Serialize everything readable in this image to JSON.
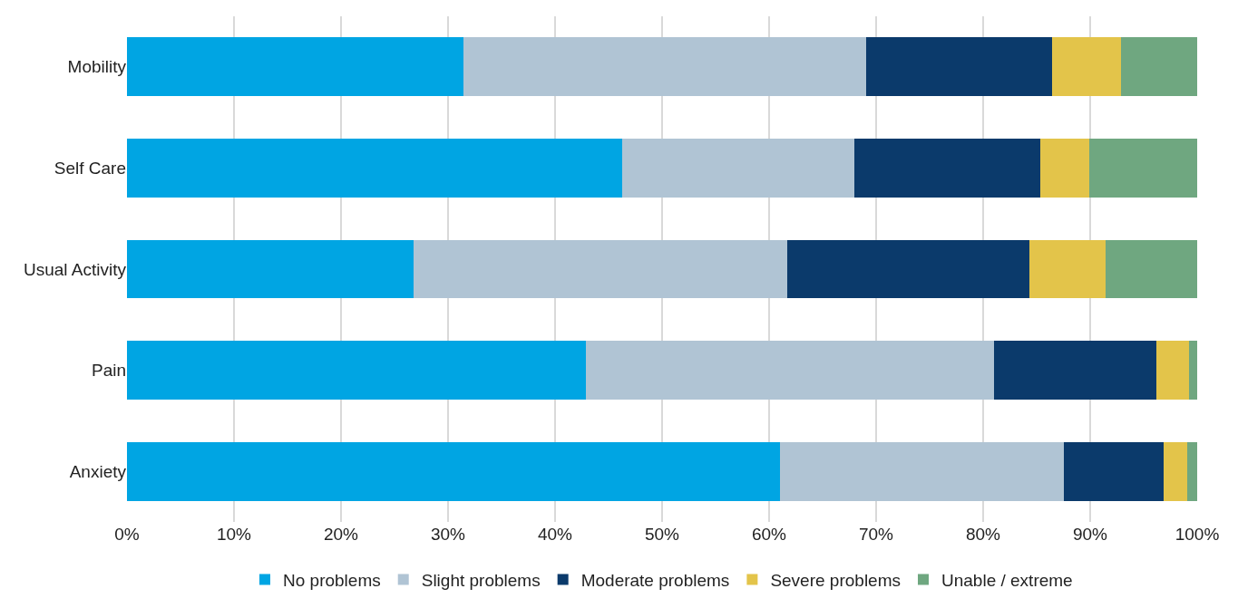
{
  "chart_data": {
    "type": "bar",
    "orientation": "horizontal",
    "stacked": true,
    "categories": [
      "Mobility",
      "Self Care",
      "Usual Activity",
      "Pain",
      "Anxiety"
    ],
    "series": [
      {
        "name": "No problems",
        "color": "#00a5e3",
        "values": [
          31.4,
          46.3,
          26.8,
          42.9,
          61.0
        ]
      },
      {
        "name": "Slight problems",
        "color": "#b0c4d4",
        "values": [
          37.7,
          21.7,
          34.9,
          38.1,
          26.5
        ]
      },
      {
        "name": "Moderate problems",
        "color": "#0b3a6b",
        "values": [
          17.3,
          17.3,
          22.6,
          15.2,
          9.4
        ]
      },
      {
        "name": "Severe problems",
        "color": "#e3c44a",
        "values": [
          6.5,
          4.6,
          7.1,
          3.0,
          2.2
        ]
      },
      {
        "name": "Unable / extreme",
        "color": "#6fa780",
        "values": [
          7.1,
          10.1,
          8.6,
          0.8,
          0.9
        ]
      }
    ],
    "xlim": [
      0,
      100
    ],
    "xticks": [
      {
        "value": 0,
        "label": "0%"
      },
      {
        "value": 10,
        "label": "10%"
      },
      {
        "value": 20,
        "label": "20%"
      },
      {
        "value": 30,
        "label": "30%"
      },
      {
        "value": 40,
        "label": "40%"
      },
      {
        "value": 50,
        "label": "50%"
      },
      {
        "value": 60,
        "label": "60%"
      },
      {
        "value": 70,
        "label": "70%"
      },
      {
        "value": 80,
        "label": "80%"
      },
      {
        "value": 90,
        "label": "90%"
      },
      {
        "value": 100,
        "label": "100%"
      }
    ],
    "grid": "x",
    "legend": "bottom"
  }
}
